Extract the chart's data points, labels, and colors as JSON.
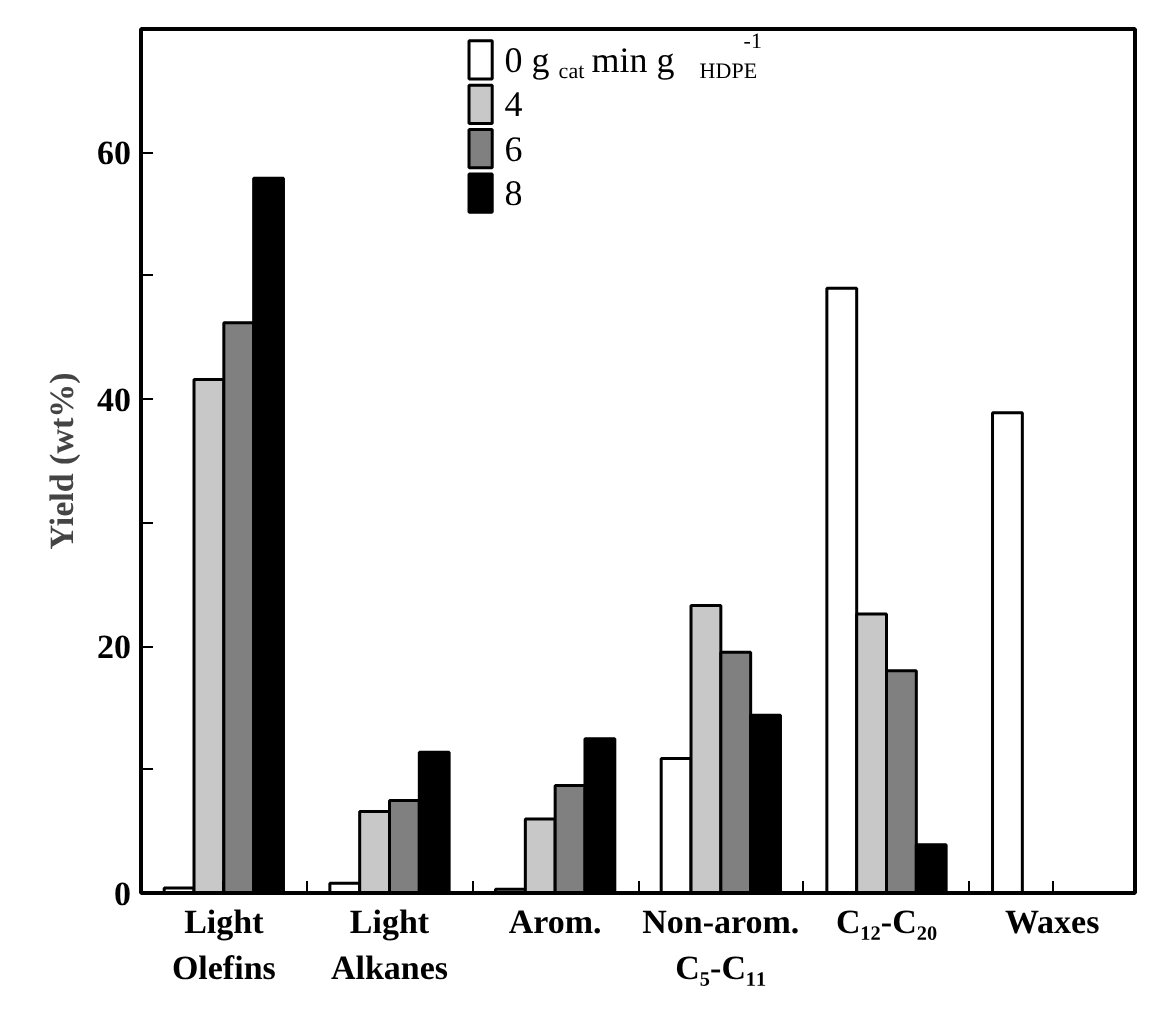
{
  "chart_data": {
    "type": "bar",
    "ylabel": "Yield (wt%)",
    "categories": [
      "Light Olefins",
      "Light Alkanes",
      "Arom.",
      "Non-arom. C₅-C₁₁",
      "C₁₂-C₂₀",
      "Waxes"
    ],
    "series": [
      {
        "name": "0 g$_{cat}$ min g$_{HDPE}$$^{-1}$",
        "color": "#ffffff",
        "values": [
          0.4,
          0.8,
          0.3,
          10.9,
          49.0,
          38.9
        ]
      },
      {
        "name": "4",
        "color": "#c8c8c8",
        "values": [
          41.6,
          6.6,
          6.0,
          23.3,
          22.6,
          null
        ]
      },
      {
        "name": "6",
        "color": "#808080",
        "values": [
          46.2,
          7.5,
          8.7,
          19.5,
          18.0,
          null
        ]
      },
      {
        "name": "8",
        "color": "#000000",
        "values": [
          57.9,
          11.4,
          12.5,
          14.4,
          3.9,
          null
        ]
      }
    ],
    "ylim": [
      0,
      70
    ],
    "yticks": [
      0,
      {
        "value": 10,
        "label": null
      },
      20,
      {
        "value": 30,
        "label": null
      },
      40,
      {
        "value": 50,
        "label": null
      },
      60
    ],
    "grid": false,
    "legend": "top"
  }
}
